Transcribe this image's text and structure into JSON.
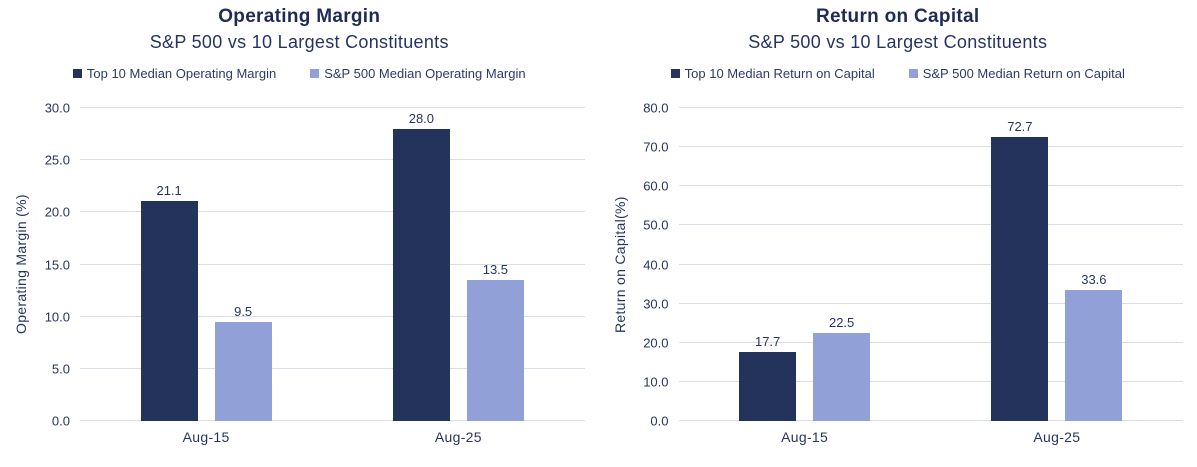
{
  "colors": {
    "title_text": "#1e2b58",
    "body_text": "#273462",
    "gridline": "#d9dde6",
    "dark_series": "#24335c",
    "light_series": "#91a0d6",
    "background": "#ffffff"
  },
  "chart_data": [
    {
      "type": "bar",
      "title": "Operating Margin",
      "subtitle": "S&P 500 vs 10 Largest Constituents",
      "ylabel": "Operating Margin (%)",
      "xlabel": "",
      "ylim": [
        0,
        30
      ],
      "ytick_step": 5,
      "yticks": [
        "0.0",
        "5.0",
        "10.0",
        "15.0",
        "20.0",
        "25.0",
        "30.0"
      ],
      "grid": true,
      "legend_position": "top",
      "categories": [
        "Aug-15",
        "Aug-25"
      ],
      "series": [
        {
          "name": "Top 10 Median Operating Margin",
          "color": "#24335c",
          "values": [
            21.1,
            28.0
          ],
          "labels": [
            "21.1",
            "28.0"
          ]
        },
        {
          "name": "S&P 500 Median Operating Margin",
          "color": "#91a0d6",
          "values": [
            9.5,
            13.5
          ],
          "labels": [
            "9.5",
            "13.5"
          ]
        }
      ]
    },
    {
      "type": "bar",
      "title": "Return on Capital",
      "subtitle": "S&P 500 vs 10 Largest Constituents",
      "ylabel": "Return on Capital(%)",
      "xlabel": "",
      "ylim": [
        0,
        80
      ],
      "ytick_step": 10,
      "yticks": [
        "0.0",
        "10.0",
        "20.0",
        "30.0",
        "40.0",
        "50.0",
        "60.0",
        "70.0",
        "80.0"
      ],
      "grid": true,
      "legend_position": "top",
      "categories": [
        "Aug-15",
        "Aug-25"
      ],
      "series": [
        {
          "name": "Top 10 Median Return on Capital",
          "color": "#24335c",
          "values": [
            17.7,
            72.7
          ],
          "labels": [
            "17.7",
            "72.7"
          ]
        },
        {
          "name": "S&P 500 Median Return on Capital",
          "color": "#91a0d6",
          "values": [
            22.5,
            33.6
          ],
          "labels": [
            "22.5",
            "33.6"
          ]
        }
      ]
    }
  ]
}
